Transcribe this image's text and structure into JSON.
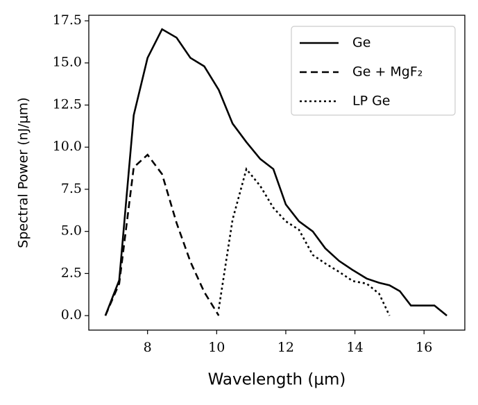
{
  "chart_data": {
    "type": "line",
    "xlabel": "Wavelength (μm)",
    "ylabel": "Spectral Power (nJ/μm)",
    "xlim": [
      6.3,
      17.18
    ],
    "ylim": [
      -0.86,
      17.83
    ],
    "xticks": [
      8,
      10,
      12,
      14,
      16
    ],
    "yticks": [
      {
        "value": 0,
        "label": "0.0"
      },
      2.5,
      {
        "value": 5,
        "label": "5.0"
      },
      7.5,
      {
        "value": 10,
        "label": "10.0"
      },
      12.5,
      {
        "value": 15,
        "label": "15.0"
      },
      17.5
    ],
    "legend": "upper right",
    "series": [
      {
        "name": "Ge",
        "color": "#000000",
        "linestyle": "solid",
        "x": [
          6.78,
          7.18,
          7.6,
          8.0,
          8.42,
          8.84,
          9.24,
          9.64,
          10.06,
          10.46,
          10.86,
          11.26,
          11.64,
          12.0,
          12.38,
          12.78,
          13.14,
          13.54,
          13.94,
          14.34,
          14.7,
          15.0,
          15.3,
          15.62,
          16.3,
          16.66
        ],
        "values": [
          0,
          2.1,
          11.9,
          15.3,
          17.0,
          16.5,
          15.3,
          14.8,
          13.4,
          11.4,
          10.3,
          9.3,
          8.7,
          6.6,
          5.6,
          5.0,
          4.0,
          3.25,
          2.7,
          2.2,
          1.95,
          1.8,
          1.45,
          0.6,
          0.6,
          0
        ]
      },
      {
        "name": "Ge + MgF₂",
        "color": "#000000",
        "linestyle": "dashed",
        "x": [
          6.78,
          7.18,
          7.6,
          8.0,
          8.42,
          8.84,
          9.24,
          9.64,
          10.06
        ],
        "values": [
          0,
          1.9,
          8.8,
          9.55,
          8.4,
          5.5,
          3.2,
          1.4,
          0
        ]
      },
      {
        "name": "LP Ge",
        "color": "#000000",
        "linestyle": "dotted",
        "x": [
          10.06,
          10.46,
          10.86,
          11.26,
          11.64,
          12.0,
          12.38,
          12.78,
          13.14,
          13.54,
          13.94,
          14.34,
          14.7,
          15.0
        ],
        "values": [
          0.4,
          5.7,
          8.7,
          7.7,
          6.4,
          5.6,
          5.1,
          3.6,
          3.1,
          2.6,
          2.05,
          1.9,
          1.3,
          0
        ]
      }
    ]
  }
}
